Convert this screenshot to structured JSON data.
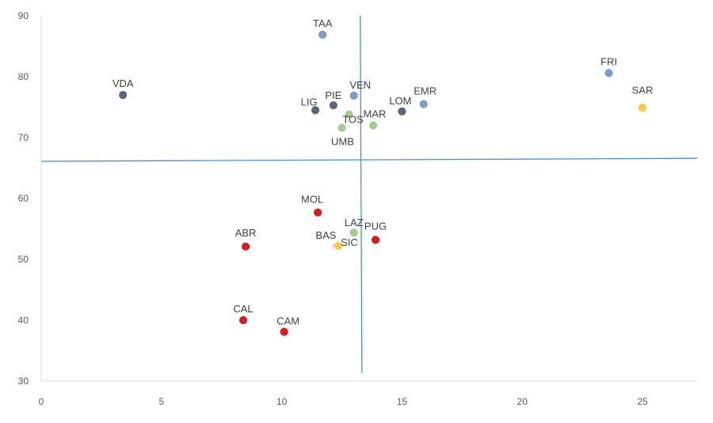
{
  "chart_data": {
    "type": "scatter",
    "title": "",
    "xlabel": "",
    "ylabel": "",
    "xlim": [
      0,
      27
    ],
    "ylim": [
      30,
      90
    ],
    "x_ticks": [
      "0",
      "5",
      "10",
      "15",
      "20",
      "25"
    ],
    "y_ticks": [
      "30",
      "40",
      "50",
      "60",
      "70",
      "80",
      "90"
    ],
    "grid": false,
    "reference_lines": {
      "vertical_x": 13.3,
      "horizontal_y_start": 66.1,
      "horizontal_y_end": 66.6
    },
    "colors": {
      "blue": "#7b9cc9",
      "dark": "#5b6678",
      "green": "#a3cc8e",
      "red": "#d41c22",
      "yellow": "#f8cc48",
      "purple": "#8f86c0",
      "line": "#4a90c8"
    },
    "points": [
      {
        "label": "VDA",
        "x": 3.4,
        "y": 77.0,
        "color": "dark"
      },
      {
        "label": "TAA",
        "x": 11.7,
        "y": 86.9,
        "color": "blue"
      },
      {
        "label": "FRI",
        "x": 23.6,
        "y": 80.6,
        "color": "blue"
      },
      {
        "label": "SAR",
        "x": 25.0,
        "y": 74.9,
        "color": "yellow"
      },
      {
        "label": "VEN",
        "x": 13.0,
        "y": 76.9,
        "color": "blue"
      },
      {
        "label": "EMR",
        "x": 15.9,
        "y": 75.5,
        "color": "blue"
      },
      {
        "label": "PIE",
        "x": 12.15,
        "y": 75.3,
        "color": "dark"
      },
      {
        "label": "LIG",
        "x": 11.4,
        "y": 74.5,
        "color": "dark"
      },
      {
        "label": "LOM",
        "x": 15.0,
        "y": 74.3,
        "color": "dark"
      },
      {
        "label": "TOS",
        "x": 12.8,
        "y": 73.8,
        "color": "green"
      },
      {
        "label": "MAR",
        "x": 13.8,
        "y": 72.0,
        "color": "green"
      },
      {
        "label": "UMB",
        "x": 12.5,
        "y": 71.6,
        "color": "green"
      },
      {
        "label": "MOL",
        "x": 11.5,
        "y": 57.7,
        "color": "red"
      },
      {
        "label": "ABR",
        "x": 8.5,
        "y": 52.1,
        "color": "red"
      },
      {
        "label": "LAZ",
        "x": 13.0,
        "y": 54.4,
        "color": "green"
      },
      {
        "label": "PUG",
        "x": 13.9,
        "y": 53.2,
        "color": "red"
      },
      {
        "label": "BAS",
        "x": 12.3,
        "y": 52.2,
        "color": "purple"
      },
      {
        "label": "SIC",
        "x": 12.35,
        "y": 52.2,
        "color": "yellow"
      },
      {
        "label": "CAL",
        "x": 8.4,
        "y": 40.0,
        "color": "red"
      },
      {
        "label": "CAM",
        "x": 10.1,
        "y": 38.1,
        "color": "red"
      }
    ]
  }
}
